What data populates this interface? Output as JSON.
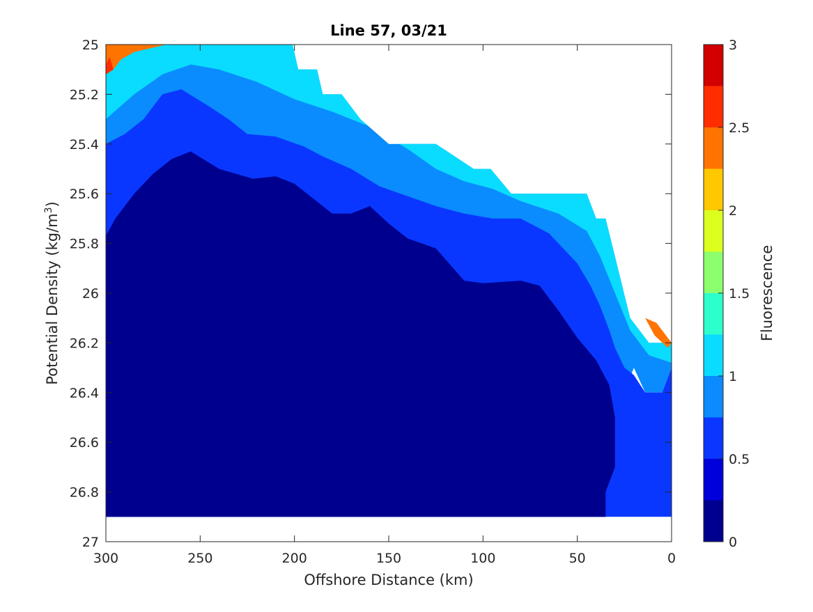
{
  "chart_data": {
    "type": "contour",
    "title": "Line 57, 03/21",
    "xlabel": "Offshore Distance (km)",
    "ylabel": "Potential Density (kg/m",
    "ylabel_sup": "3",
    "ylabel_close": ")",
    "colorbar_label": "Fluorescence",
    "xlim": [
      300,
      0
    ],
    "ylim": [
      27,
      25
    ],
    "x_reversed": true,
    "y_reversed": true,
    "x_ticks": [
      300,
      250,
      200,
      150,
      100,
      50,
      0
    ],
    "x_tick_labels": [
      "300",
      "250",
      "200",
      "150",
      "100",
      "50",
      "0"
    ],
    "y_ticks": [
      25,
      25.2,
      25.4,
      25.6,
      25.8,
      26,
      26.2,
      26.4,
      26.6,
      26.8,
      27
    ],
    "y_tick_labels": [
      "25",
      "25.2",
      "25.4",
      "25.6",
      "25.8",
      "26",
      "26.2",
      "26.4",
      "26.6",
      "26.8",
      "27"
    ],
    "color_ticks": [
      0,
      0.5,
      1,
      1.5,
      2,
      2.5,
      3
    ],
    "color_tick_labels": [
      "0",
      "0.5",
      "1",
      "1.5",
      "2",
      "2.5",
      "3"
    ],
    "clim": [
      0,
      3
    ],
    "levels": [
      0,
      0.25,
      0.5,
      0.75,
      1,
      1.25,
      1.5,
      1.75,
      2,
      2.25,
      2.5,
      2.75,
      3
    ],
    "level_colors": [
      "#00008f",
      "#0000db",
      "#0a37ff",
      "#0a8cff",
      "#0adcff",
      "#2dffcc",
      "#8cff6e",
      "#dcff1e",
      "#ffc800",
      "#ff7300",
      "#ff2d00",
      "#d20000"
    ],
    "data_boundary": [
      [
        300,
        25.0
      ],
      [
        201,
        25.0
      ],
      [
        198,
        25.1
      ],
      [
        188,
        25.1
      ],
      [
        185,
        25.2
      ],
      [
        175,
        25.2
      ],
      [
        165,
        25.3
      ],
      [
        150,
        25.4
      ],
      [
        125,
        25.4
      ],
      [
        105,
        25.5
      ],
      [
        96,
        25.5
      ],
      [
        85,
        25.6
      ],
      [
        55,
        25.6
      ],
      [
        45,
        25.6
      ],
      [
        40,
        25.7
      ],
      [
        35,
        25.7
      ],
      [
        22,
        26.1
      ],
      [
        12,
        26.2
      ],
      [
        0,
        26.2
      ],
      [
        0,
        26.3
      ],
      [
        5,
        26.4
      ],
      [
        14,
        26.4
      ],
      [
        20,
        26.3
      ],
      [
        30,
        26.5
      ],
      [
        30,
        26.7
      ],
      [
        35,
        26.8
      ],
      [
        35,
        26.9
      ],
      [
        300,
        26.9
      ]
    ],
    "contour_bands": [
      {
        "level": 1,
        "boundary": [
          [
            300,
            25.77
          ],
          [
            295,
            25.7
          ],
          [
            285,
            25.6
          ],
          [
            275,
            25.52
          ],
          [
            265,
            25.46
          ],
          [
            255,
            25.43
          ],
          [
            240,
            25.5
          ],
          [
            222,
            25.54
          ],
          [
            210,
            25.53
          ],
          [
            200,
            25.56
          ],
          [
            190,
            25.62
          ],
          [
            180,
            25.68
          ],
          [
            170,
            25.68
          ],
          [
            160,
            25.65
          ],
          [
            150,
            25.72
          ],
          [
            140,
            25.78
          ],
          [
            125,
            25.82
          ],
          [
            110,
            25.95
          ],
          [
            100,
            25.96
          ],
          [
            80,
            25.95
          ],
          [
            70,
            25.97
          ],
          [
            60,
            26.07
          ],
          [
            50,
            26.18
          ],
          [
            40,
            26.27
          ],
          [
            33,
            26.37
          ],
          [
            30,
            26.5
          ],
          [
            30,
            26.7
          ],
          [
            35,
            26.8
          ],
          [
            35,
            26.9
          ],
          [
            300,
            26.9
          ]
        ]
      },
      {
        "level": 2,
        "boundary": [
          [
            300,
            25.4
          ],
          [
            290,
            25.36
          ],
          [
            280,
            25.3
          ],
          [
            270,
            25.2
          ],
          [
            260,
            25.18
          ],
          [
            245,
            25.25
          ],
          [
            235,
            25.3
          ],
          [
            225,
            25.36
          ],
          [
            210,
            25.37
          ],
          [
            195,
            25.41
          ],
          [
            185,
            25.45
          ],
          [
            170,
            25.5
          ],
          [
            155,
            25.57
          ],
          [
            140,
            25.61
          ],
          [
            125,
            25.65
          ],
          [
            110,
            25.68
          ],
          [
            95,
            25.7
          ],
          [
            80,
            25.7
          ],
          [
            65,
            25.76
          ],
          [
            50,
            25.88
          ],
          [
            43,
            25.97
          ],
          [
            38,
            26.05
          ],
          [
            33,
            26.15
          ],
          [
            30,
            26.22
          ],
          [
            25,
            26.3
          ],
          [
            20,
            26.33
          ],
          [
            14,
            26.4
          ],
          [
            5,
            26.4
          ],
          [
            0,
            26.3
          ],
          [
            0,
            26.9
          ],
          [
            300,
            26.9
          ]
        ]
      }
    ],
    "warm_patches": [
      {
        "level": 9,
        "boundary": [
          [
            300,
            25.0
          ],
          [
            268,
            25.0
          ],
          [
            285,
            25.03
          ],
          [
            292,
            25.06
          ],
          [
            296,
            25.1
          ],
          [
            300,
            25.12
          ]
        ]
      },
      {
        "level": 10,
        "boundary": [
          [
            300,
            25.08
          ],
          [
            298,
            25.05
          ],
          [
            296,
            25.1
          ],
          [
            300,
            25.12
          ]
        ]
      },
      {
        "level": 9,
        "boundary": [
          [
            14,
            26.1
          ],
          [
            8,
            26.12
          ],
          [
            0,
            26.2
          ],
          [
            2,
            26.22
          ],
          [
            9,
            26.17
          ]
        ]
      }
    ]
  }
}
